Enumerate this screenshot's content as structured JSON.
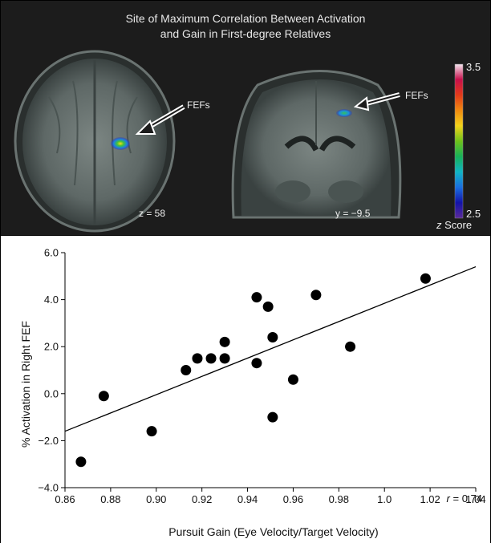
{
  "figure": {
    "title_line1": "Site of Maximum Correlation Between Activation",
    "title_line2": "and Gain in First-degree Relatives",
    "axial_annotation": "FEFs",
    "coronal_annotation": "FEFs",
    "axial_slice_label": "z = 58",
    "coronal_slice_label": "y = −9.5",
    "colorbar": {
      "max_label": "3.5",
      "min_label": "2.5",
      "title_italic": "z",
      "title_rest": " Score",
      "colors": [
        "#f2e4ee",
        "#c8104c",
        "#e23a1a",
        "#f08a10",
        "#f2d21a",
        "#6fc21a",
        "#18b25a",
        "#10b4c4",
        "#1a6ee0",
        "#1414a8",
        "#5a2a9a"
      ]
    }
  },
  "chart_data": {
    "type": "scatter",
    "xlabel": "Pursuit Gain (Eye Velocity/Target Velocity)",
    "ylabel": "% Activation in Right FEF",
    "xlim": [
      0.86,
      1.04
    ],
    "ylim": [
      -4.0,
      6.0
    ],
    "x_ticks": [
      "0.86",
      "0.88",
      "0.90",
      "0.92",
      "0.94",
      "0.96",
      "0.98",
      "1.0",
      "1.02",
      "1.04"
    ],
    "y_ticks": [
      "−4.0",
      "−2.0",
      "0.0",
      "2.0",
      "4.0",
      "6.0"
    ],
    "x": [
      0.867,
      0.877,
      0.898,
      0.913,
      0.918,
      0.924,
      0.93,
      0.93,
      0.944,
      0.944,
      0.949,
      0.951,
      0.951,
      0.96,
      0.97,
      0.985,
      1.018
    ],
    "y": [
      -2.9,
      -0.1,
      -1.6,
      1.0,
      1.5,
      1.5,
      1.5,
      2.2,
      4.1,
      1.3,
      3.7,
      2.4,
      -1.0,
      0.6,
      4.2,
      2.0,
      4.9
    ],
    "fit_line": {
      "x": [
        0.86,
        1.04
      ],
      "y": [
        -1.6,
        5.4
      ]
    },
    "annotation_italic": "r",
    "annotation_rest": " = 0.74",
    "grid": false,
    "legend": "none"
  }
}
